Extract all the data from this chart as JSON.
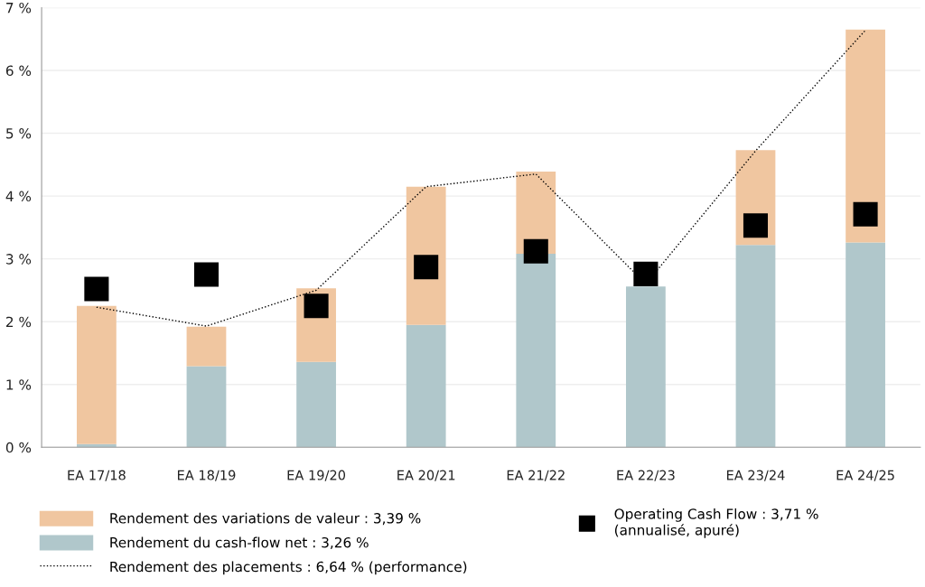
{
  "chart_data": {
    "type": "bar",
    "stacked": true,
    "categories": [
      "EA 17/18",
      "EA 18/19",
      "EA 19/20",
      "EA 20/21",
      "EA 21/22",
      "EA 22/23",
      "EA 23/24",
      "EA 24/25"
    ],
    "series": [
      {
        "name": "Rendement du cash-flow net : 3,26 %",
        "color": "#b0c7cb",
        "values": [
          0.05,
          1.29,
          1.36,
          1.95,
          3.08,
          2.56,
          3.22,
          3.26
        ]
      },
      {
        "name": "Rendement des variations de valeur : 3,39 %",
        "color": "#f0c6a0",
        "values": [
          2.2,
          0.63,
          1.17,
          2.2,
          1.31,
          null,
          1.51,
          3.39
        ]
      },
      {
        "name": "Rendement des placements : 6,64 % (performance)",
        "type": "line",
        "color": "#000000",
        "line_style": "dotted",
        "marker": "none",
        "values": [
          2.23,
          1.93,
          2.5,
          4.15,
          4.35,
          2.6,
          4.72,
          6.64
        ]
      },
      {
        "name": "Operating Cash Flow : 3,71 %\n(annualisé, apuré)",
        "type": "scatter",
        "color": "#000000",
        "marker": "square",
        "values": [
          2.52,
          2.75,
          2.25,
          2.87,
          3.12,
          2.76,
          3.53,
          3.71
        ]
      }
    ],
    "ylim": [
      0,
      7
    ],
    "yticks": [
      {
        "value": 0,
        "label": "0 %"
      },
      {
        "value": 1,
        "label": "1 %"
      },
      {
        "value": 2,
        "label": "2 %"
      },
      {
        "value": 3,
        "label": "3 %"
      },
      {
        "value": 4,
        "label": "4 %"
      },
      {
        "value": 5,
        "label": "5 %"
      },
      {
        "value": 6,
        "label": "6 %"
      },
      {
        "value": 7,
        "label": "7 %"
      }
    ],
    "grid": "y",
    "legend": "bottom"
  }
}
